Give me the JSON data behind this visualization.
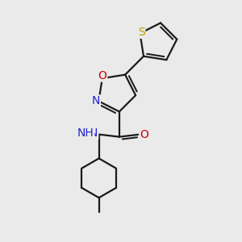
{
  "background_color": "#eaeaea",
  "bond_color": "#1a1a1a",
  "bond_width": 1.6,
  "atom_colors": {
    "S": "#b8a000",
    "O": "#cc0000",
    "N": "#2222cc",
    "C": "#1a1a1a"
  },
  "font_size_atom": 10,
  "font_size_small": 8,
  "fig_width": 3.0,
  "fig_height": 3.0,
  "dpi": 100
}
